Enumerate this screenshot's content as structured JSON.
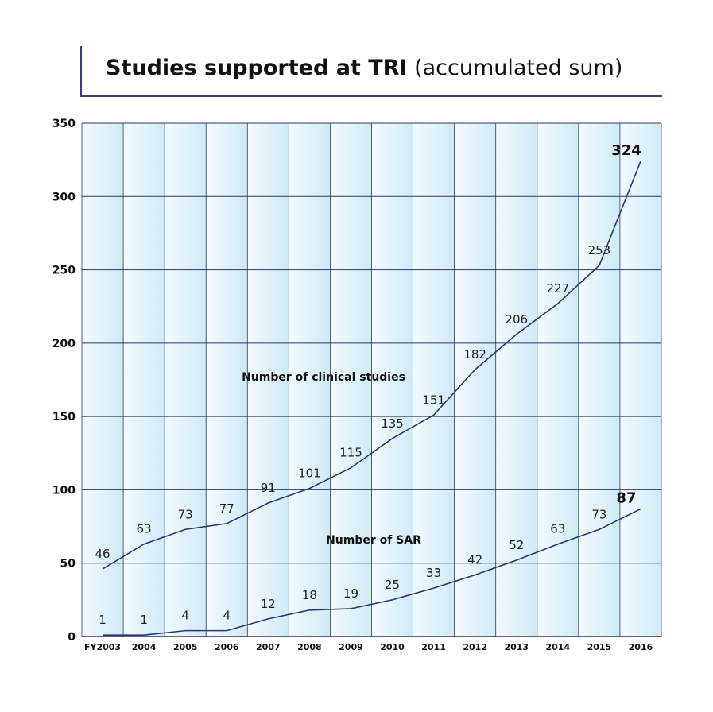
{
  "chart_data": {
    "type": "line",
    "title": "Studies supported at TRI",
    "subtitle": "(accumulated sum)",
    "categories": [
      "FY2003",
      "2004",
      "2005",
      "2006",
      "2007",
      "2008",
      "2009",
      "2010",
      "2011",
      "2012",
      "2013",
      "2014",
      "2015",
      "2016"
    ],
    "series": [
      {
        "name": "Number of clinical studies",
        "values": [
          46,
          63,
          73,
          77,
          91,
          101,
          115,
          135,
          151,
          182,
          206,
          227,
          253,
          324
        ],
        "color": "#2e3470"
      },
      {
        "name": "Number of SAR",
        "values": [
          1,
          1,
          4,
          4,
          12,
          18,
          19,
          25,
          33,
          42,
          52,
          63,
          73,
          87
        ],
        "color": "#2e3470"
      }
    ],
    "ylim": [
      0,
      350
    ],
    "yticks": [
      0,
      50,
      100,
      150,
      200,
      250,
      300,
      350
    ],
    "grid": true,
    "xlabel": "",
    "ylabel": ""
  },
  "colors": {
    "band_light": "#eef8fc",
    "band_dark": "#d6eef8",
    "grid": "#2e3470",
    "line": "#2e3470"
  }
}
